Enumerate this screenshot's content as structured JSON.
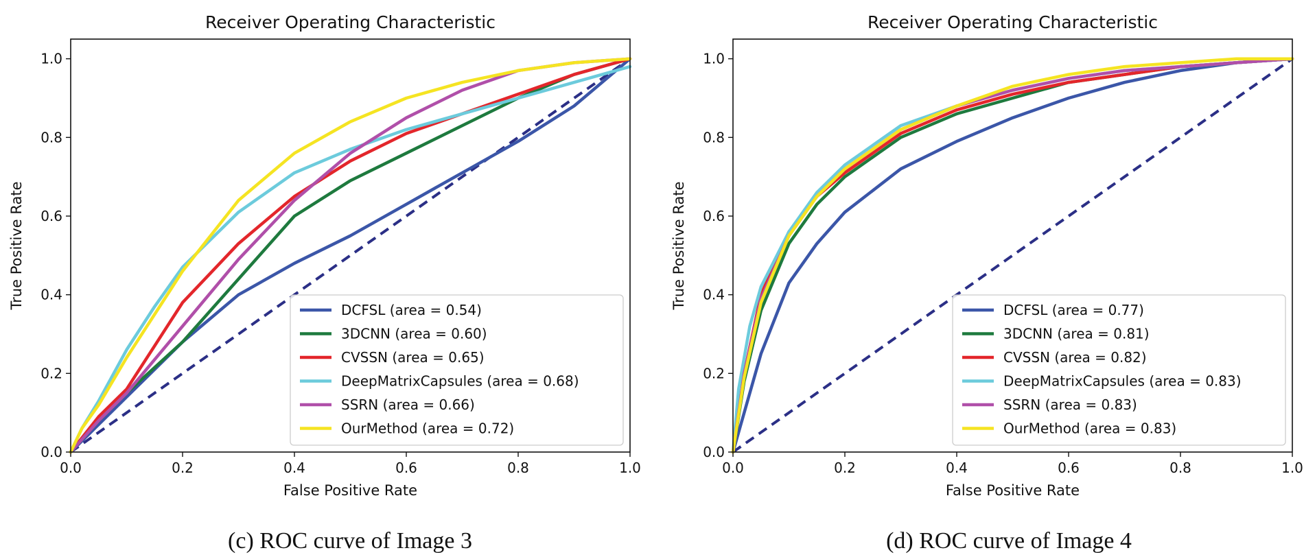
{
  "chart_data": [
    {
      "type": "line",
      "title": "Receiver Operating Characteristic",
      "xlabel": "False Positive Rate",
      "ylabel": "True Positive Rate",
      "caption": "(c) ROC curve of Image 3",
      "xlim": [
        0,
        1
      ],
      "ylim": [
        0,
        1.05
      ],
      "xticks": [
        "0.0",
        "0.2",
        "0.4",
        "0.6",
        "0.8",
        "1.0"
      ],
      "yticks": [
        "0.0",
        "0.2",
        "0.4",
        "0.6",
        "0.8",
        "1.0"
      ],
      "legend_position": "lower-right",
      "diagonal": {
        "color": "#2b2f86",
        "style": "dashed"
      },
      "series": [
        {
          "name": "DCFSL",
          "label": "DCFSL (area = 0.54)",
          "color": "#3b56a8",
          "x": [
            0,
            0.1,
            0.2,
            0.3,
            0.4,
            0.5,
            0.6,
            0.7,
            0.8,
            0.9,
            1.0
          ],
          "y": [
            0,
            0.14,
            0.28,
            0.4,
            0.48,
            0.55,
            0.63,
            0.71,
            0.79,
            0.88,
            1.0
          ]
        },
        {
          "name": "3DCNN",
          "label": "3DCNN (area = 0.60)",
          "color": "#1e7a3e",
          "x": [
            0,
            0.05,
            0.1,
            0.2,
            0.3,
            0.4,
            0.5,
            0.6,
            0.7,
            0.8,
            0.9,
            1.0
          ],
          "y": [
            0,
            0.08,
            0.15,
            0.28,
            0.44,
            0.6,
            0.69,
            0.76,
            0.83,
            0.9,
            0.96,
            1.0
          ]
        },
        {
          "name": "CVSSN",
          "label": "CVSSN (area = 0.65)",
          "color": "#e3262b",
          "x": [
            0,
            0.05,
            0.1,
            0.15,
            0.2,
            0.3,
            0.4,
            0.5,
            0.6,
            0.7,
            0.8,
            0.9,
            1.0
          ],
          "y": [
            0,
            0.09,
            0.16,
            0.27,
            0.38,
            0.53,
            0.65,
            0.74,
            0.81,
            0.86,
            0.91,
            0.96,
            1.0
          ]
        },
        {
          "name": "DeepMatrixCapsules",
          "label": "DeepMatrixCapsules (area = 0.68)",
          "color": "#6ccbdc",
          "x": [
            0,
            0.02,
            0.05,
            0.1,
            0.15,
            0.2,
            0.3,
            0.4,
            0.5,
            0.6,
            0.7,
            0.8,
            0.9,
            1.0
          ],
          "y": [
            0,
            0.06,
            0.13,
            0.26,
            0.37,
            0.47,
            0.61,
            0.71,
            0.77,
            0.82,
            0.86,
            0.9,
            0.94,
            0.98
          ]
        },
        {
          "name": "SSRN",
          "label": "SSRN (area = 0.66)",
          "color": "#b04fa9",
          "x": [
            0,
            0.05,
            0.1,
            0.2,
            0.3,
            0.4,
            0.5,
            0.6,
            0.7,
            0.8,
            0.9,
            1.0
          ],
          "y": [
            0,
            0.08,
            0.15,
            0.32,
            0.49,
            0.64,
            0.76,
            0.85,
            0.92,
            0.97,
            0.99,
            1.0
          ]
        },
        {
          "name": "OurMethod",
          "label": "OurMethod (area = 0.72)",
          "color": "#f5e422",
          "x": [
            0,
            0.02,
            0.05,
            0.1,
            0.2,
            0.3,
            0.4,
            0.5,
            0.6,
            0.7,
            0.8,
            0.9,
            1.0
          ],
          "y": [
            0,
            0.06,
            0.12,
            0.24,
            0.46,
            0.64,
            0.76,
            0.84,
            0.9,
            0.94,
            0.97,
            0.99,
            1.0
          ]
        }
      ]
    },
    {
      "type": "line",
      "title": "Receiver Operating Characteristic",
      "xlabel": "False Positive Rate",
      "ylabel": "True Positive Rate",
      "caption": "(d) ROC curve of Image 4",
      "xlim": [
        0,
        1
      ],
      "ylim": [
        0,
        1.05
      ],
      "xticks": [
        "0.0",
        "0.2",
        "0.4",
        "0.6",
        "0.8",
        "1.0"
      ],
      "yticks": [
        "0.0",
        "0.2",
        "0.4",
        "0.6",
        "0.8",
        "1.0"
      ],
      "legend_position": "lower-right",
      "diagonal": {
        "color": "#2b2f86",
        "style": "dashed"
      },
      "series": [
        {
          "name": "DCFSL",
          "label": "DCFSL (area = 0.77)",
          "color": "#3b56a8",
          "x": [
            0,
            0.05,
            0.1,
            0.15,
            0.2,
            0.3,
            0.4,
            0.5,
            0.6,
            0.7,
            0.8,
            0.9,
            1.0
          ],
          "y": [
            0,
            0.25,
            0.43,
            0.53,
            0.61,
            0.72,
            0.79,
            0.85,
            0.9,
            0.94,
            0.97,
            0.99,
            1.0
          ]
        },
        {
          "name": "3DCNN",
          "label": "3DCNN (area = 0.81)",
          "color": "#1e7a3e",
          "x": [
            0,
            0.02,
            0.05,
            0.1,
            0.15,
            0.2,
            0.3,
            0.4,
            0.5,
            0.6,
            0.7,
            0.8,
            0.9,
            1.0
          ],
          "y": [
            0,
            0.18,
            0.36,
            0.53,
            0.63,
            0.7,
            0.8,
            0.86,
            0.9,
            0.94,
            0.96,
            0.98,
            0.99,
            1.0
          ]
        },
        {
          "name": "CVSSN",
          "label": "CVSSN (area = 0.82)",
          "color": "#e3262b",
          "x": [
            0,
            0.02,
            0.05,
            0.1,
            0.15,
            0.2,
            0.3,
            0.4,
            0.5,
            0.6,
            0.7,
            0.8,
            0.9,
            1.0
          ],
          "y": [
            0,
            0.2,
            0.4,
            0.56,
            0.65,
            0.71,
            0.81,
            0.87,
            0.91,
            0.94,
            0.96,
            0.98,
            0.99,
            1.0
          ]
        },
        {
          "name": "DeepMatrixCapsules",
          "label": "DeepMatrixCapsules (area = 0.83)",
          "color": "#6ccbdc",
          "x": [
            0,
            0.01,
            0.03,
            0.05,
            0.1,
            0.15,
            0.2,
            0.3,
            0.4,
            0.5,
            0.6,
            0.7,
            0.8,
            0.9,
            1.0
          ],
          "y": [
            0,
            0.16,
            0.32,
            0.42,
            0.56,
            0.66,
            0.73,
            0.83,
            0.88,
            0.92,
            0.95,
            0.97,
            0.98,
            0.99,
            1.0
          ]
        },
        {
          "name": "SSRN",
          "label": "SSRN (area = 0.83)",
          "color": "#b04fa9",
          "x": [
            0,
            0.02,
            0.05,
            0.1,
            0.15,
            0.2,
            0.3,
            0.4,
            0.5,
            0.6,
            0.7,
            0.8,
            0.9,
            1.0
          ],
          "y": [
            0,
            0.2,
            0.39,
            0.55,
            0.65,
            0.72,
            0.82,
            0.88,
            0.92,
            0.95,
            0.97,
            0.98,
            0.99,
            1.0
          ]
        },
        {
          "name": "OurMethod",
          "label": "OurMethod (area = 0.83)",
          "color": "#f5e422",
          "x": [
            0,
            0.02,
            0.05,
            0.1,
            0.15,
            0.2,
            0.3,
            0.4,
            0.5,
            0.6,
            0.7,
            0.8,
            0.9,
            1.0
          ],
          "y": [
            0,
            0.19,
            0.38,
            0.55,
            0.65,
            0.72,
            0.82,
            0.88,
            0.93,
            0.96,
            0.98,
            0.99,
            1.0,
            1.0
          ]
        }
      ]
    }
  ]
}
